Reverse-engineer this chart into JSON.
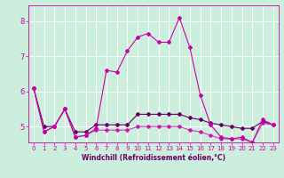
{
  "title": "",
  "xlabel": "Windchill (Refroidissement éolien,°C)",
  "bg_color": "#cceedd",
  "grid_color": "#ffffff",
  "line_color_main": "#cc00aa",
  "line_color_dark": "#660066",
  "xlim": [
    -0.5,
    23.5
  ],
  "ylim": [
    4.55,
    8.45
  ],
  "yticks": [
    5,
    6,
    7,
    8
  ],
  "xticks": [
    0,
    1,
    2,
    3,
    4,
    5,
    6,
    7,
    8,
    9,
    10,
    11,
    12,
    13,
    14,
    15,
    16,
    17,
    18,
    19,
    20,
    21,
    22,
    23
  ],
  "series1_x": [
    0,
    1,
    2,
    3,
    4,
    5,
    6,
    7,
    8,
    9,
    10,
    11,
    12,
    13,
    14,
    15,
    16,
    17,
    18,
    19,
    20,
    21,
    22,
    23
  ],
  "series1_y": [
    6.1,
    4.85,
    5.0,
    5.5,
    4.7,
    4.75,
    4.95,
    6.6,
    6.55,
    7.15,
    7.55,
    7.65,
    7.4,
    7.4,
    8.1,
    7.25,
    5.9,
    5.05,
    4.7,
    4.65,
    4.7,
    4.55,
    5.2,
    5.05
  ],
  "series2_x": [
    0,
    1,
    2,
    3,
    4,
    5,
    6,
    7,
    8,
    9,
    10,
    11,
    12,
    13,
    14,
    15,
    16,
    17,
    18,
    19,
    20,
    21,
    22,
    23
  ],
  "series2_y": [
    6.1,
    5.0,
    5.0,
    5.5,
    4.85,
    4.85,
    5.05,
    5.05,
    5.05,
    5.05,
    5.35,
    5.35,
    5.35,
    5.35,
    5.35,
    5.25,
    5.2,
    5.1,
    5.05,
    5.0,
    4.95,
    4.95,
    5.15,
    5.05
  ],
  "series3_x": [
    0,
    1,
    2,
    3,
    4,
    5,
    6,
    7,
    8,
    9,
    10,
    11,
    12,
    13,
    14,
    15,
    16,
    17,
    18,
    19,
    20,
    21,
    22,
    23
  ],
  "series3_y": [
    6.1,
    4.85,
    5.0,
    5.5,
    4.7,
    4.75,
    4.9,
    4.9,
    4.9,
    4.9,
    5.0,
    5.0,
    5.0,
    5.0,
    5.0,
    4.9,
    4.85,
    4.75,
    4.65,
    4.65,
    4.65,
    4.55,
    5.1,
    5.05
  ],
  "lw": 0.8,
  "ms": 2.0
}
